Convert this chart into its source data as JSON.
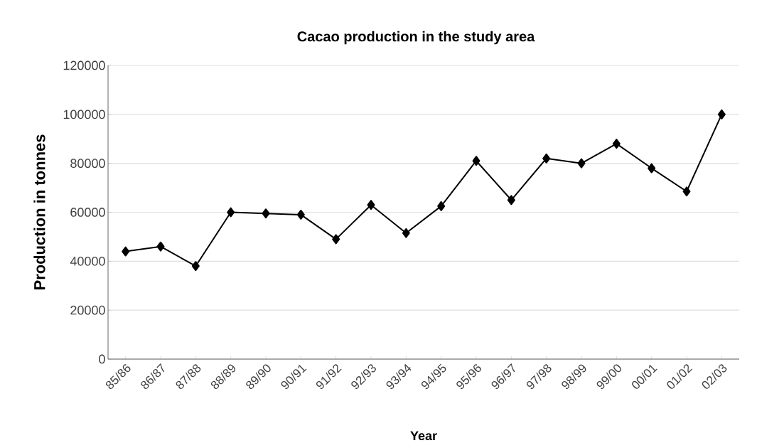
{
  "chart_data": {
    "type": "line",
    "title": "Cacao production in the study area",
    "xlabel": "Year",
    "ylabel": "Production in tonnes",
    "categories": [
      "85/86",
      "86/87",
      "87/88",
      "88/89",
      "89/90",
      "90/91",
      "91/92",
      "92/93",
      "93/94",
      "94/95",
      "95/96",
      "96/97",
      "97/98",
      "98/99",
      "99/00",
      "00/01",
      "01/02",
      "02/03"
    ],
    "series": [
      {
        "color": "#000000",
        "values": [
          44000,
          46000,
          38000,
          60000,
          59500,
          59000,
          49000,
          63000,
          51500,
          62500,
          81000,
          65000,
          82000,
          80000,
          88000,
          78000,
          68500,
          100000
        ]
      }
    ],
    "ylim": [
      0,
      120000
    ],
    "yticks": [
      0,
      20000,
      40000,
      60000,
      80000,
      100000,
      120000
    ],
    "grid": "y",
    "marker": "diamond",
    "line_style": "solid"
  }
}
